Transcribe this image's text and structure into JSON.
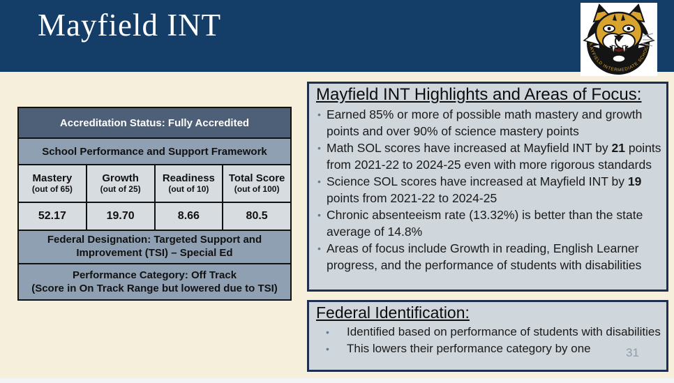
{
  "slide": {
    "title": "Mayfield INT",
    "page_number": "31"
  },
  "logo": {
    "ring_text": "MAYFIELD INTERMEDIATE SCHOOL",
    "gold": "#d9a42e",
    "black": "#141414"
  },
  "score_table": {
    "accreditation_status": "Accreditation Status: Fully Accredited",
    "framework_title": "School Performance and Support Framework",
    "columns": [
      {
        "label": "Mastery",
        "sub": "(out of 65)",
        "value": "52.17"
      },
      {
        "label": "Growth",
        "sub": "(out of 25)",
        "value": "19.70"
      },
      {
        "label": "Readiness",
        "sub": "(out of 10)",
        "value": "8.66"
      },
      {
        "label": "Total Score",
        "sub": "(out of 100)",
        "value": "80.5"
      }
    ],
    "federal_designation_lines": [
      "Federal Designation: Targeted Support and",
      "Improvement (TSI) – Special Ed"
    ],
    "performance_category_lines": [
      "Performance Category: Off Track",
      "(Score in On Track Range but lowered due to TSI)"
    ]
  },
  "highlights": {
    "title": "Mayfield INT Highlights and Areas of Focus:",
    "bullets": [
      {
        "pre": "Earned 85% or more of possible math mastery and growth points and over 90% of science mastery points",
        "bold": "",
        "post": ""
      },
      {
        "pre": "Math SOL scores have increased at Mayfield INT by ",
        "bold": "21",
        "post": " points from 2021-22 to 2024-25 even with more rigorous standards"
      },
      {
        "pre": "Science SOL scores have increased at Mayfield INT by ",
        "bold": "19",
        "post": " points from 2021-22 to 2024-25"
      },
      {
        "pre": "Chronic absenteeism rate (13.32%) is better than the state average of 14.8%",
        "bold": "",
        "post": ""
      },
      {
        "pre": "Areas of focus include Growth in reading, English Learner progress, and the performance of students with disabilities",
        "bold": "",
        "post": ""
      }
    ]
  },
  "federal": {
    "title": "Federal Identification:",
    "bullets": [
      {
        "pre": "Identified based on performance of students with disabilities",
        "bold": "",
        "post": ""
      },
      {
        "pre": "This lowers their performance category by one",
        "bold": "",
        "post": ""
      }
    ]
  },
  "colors": {
    "header_navy": "#143e68",
    "slide_cream": "#f6efdc",
    "table_dark_row": "#4e6078",
    "table_mid_row": "#8fa0b2",
    "table_light_cell": "#d7dce1",
    "box_fill": "#cfd6dc",
    "box_border": "#1e2e4e",
    "bullet_dot": "#5d7ca0"
  }
}
